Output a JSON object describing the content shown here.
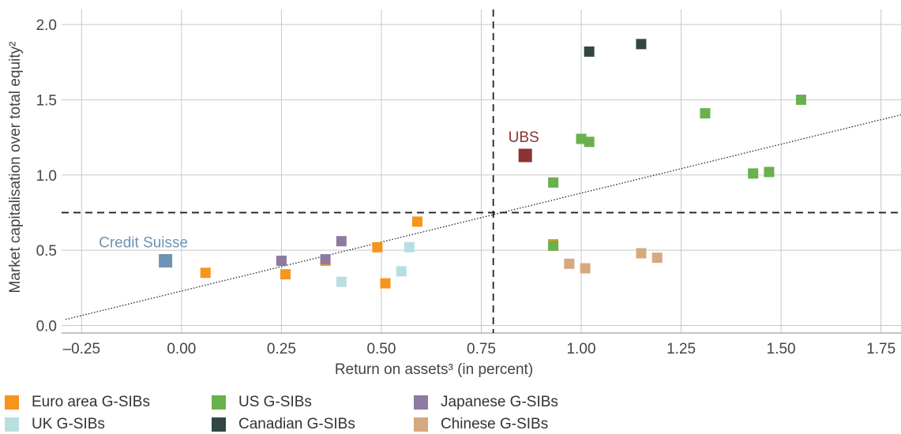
{
  "chart_data": {
    "type": "scatter",
    "xlabel": "Return on assets³ (in percent)",
    "ylabel": "Market capitalisation over total equity²",
    "xlim": [
      -0.3,
      1.8
    ],
    "ylim": [
      -0.05,
      2.1
    ],
    "xticks": [
      "–0.25",
      "0.00",
      "0.25",
      "0.50",
      "0.75",
      "1.00",
      "1.25",
      "1.50",
      "1.75"
    ],
    "xtick_values": [
      -0.25,
      0,
      0.25,
      0.5,
      0.75,
      1.0,
      1.25,
      1.5,
      1.75
    ],
    "yticks": [
      "0.0",
      "0.5",
      "1.0",
      "1.5",
      "2.0"
    ],
    "ytick_values": [
      0,
      0.5,
      1.0,
      1.5,
      2.0
    ],
    "grid": true,
    "reference_lines": {
      "vertical_x": 0.78,
      "horizontal_y": 0.75
    },
    "trend_line": {
      "x": [
        -0.29,
        1.8
      ],
      "y": [
        0.04,
        1.4
      ]
    },
    "series": [
      {
        "name": "Euro area G-SIBs",
        "color": "#f7941d",
        "points": [
          [
            0.06,
            0.35
          ],
          [
            0.26,
            0.34
          ],
          [
            0.36,
            0.43
          ],
          [
            0.49,
            0.52
          ],
          [
            0.51,
            0.28
          ],
          [
            0.59,
            0.69
          ],
          [
            0.93,
            0.54
          ]
        ]
      },
      {
        "name": "UK G-SIBs",
        "color": "#b8dfe0",
        "points": [
          [
            0.4,
            0.29
          ],
          [
            0.55,
            0.36
          ],
          [
            0.57,
            0.52
          ]
        ]
      },
      {
        "name": "US G-SIBs",
        "color": "#6ab04c",
        "points": [
          [
            0.93,
            0.95
          ],
          [
            0.93,
            0.53
          ],
          [
            1.0,
            1.24
          ],
          [
            1.02,
            1.22
          ],
          [
            1.31,
            1.41
          ],
          [
            1.43,
            1.01
          ],
          [
            1.47,
            1.02
          ],
          [
            1.55,
            1.5
          ]
        ]
      },
      {
        "name": "Canadian G-SIBs",
        "color": "#324643",
        "points": [
          [
            1.02,
            1.82
          ],
          [
            1.15,
            1.87
          ]
        ]
      },
      {
        "name": "Japanese G-SIBs",
        "color": "#8f7aa1",
        "points": [
          [
            0.25,
            0.43
          ],
          [
            0.36,
            0.44
          ],
          [
            0.4,
            0.56
          ]
        ]
      },
      {
        "name": "Chinese G-SIBs",
        "color": "#d6a97f",
        "points": [
          [
            0.97,
            0.41
          ],
          [
            1.01,
            0.38
          ],
          [
            1.15,
            0.48
          ],
          [
            1.19,
            0.45
          ]
        ]
      }
    ],
    "highlights": [
      {
        "label": "UBS",
        "x": 0.86,
        "y": 1.13,
        "color": "#8b3232"
      },
      {
        "label": "Credit Suisse",
        "x": -0.04,
        "y": 0.43,
        "color": "#6f93b3"
      }
    ]
  },
  "legend": {
    "items": [
      {
        "label": "Euro area G-SIBs",
        "color": "#f7941d"
      },
      {
        "label": "UK G-SIBs",
        "color": "#b8dfe0"
      },
      {
        "label": "US G-SIBs",
        "color": "#6ab04c"
      },
      {
        "label": "Canadian G-SIBs",
        "color": "#324643"
      },
      {
        "label": "Japanese G-SIBs",
        "color": "#8f7aa1"
      },
      {
        "label": "Chinese G-SIBs",
        "color": "#d6a97f"
      }
    ]
  }
}
